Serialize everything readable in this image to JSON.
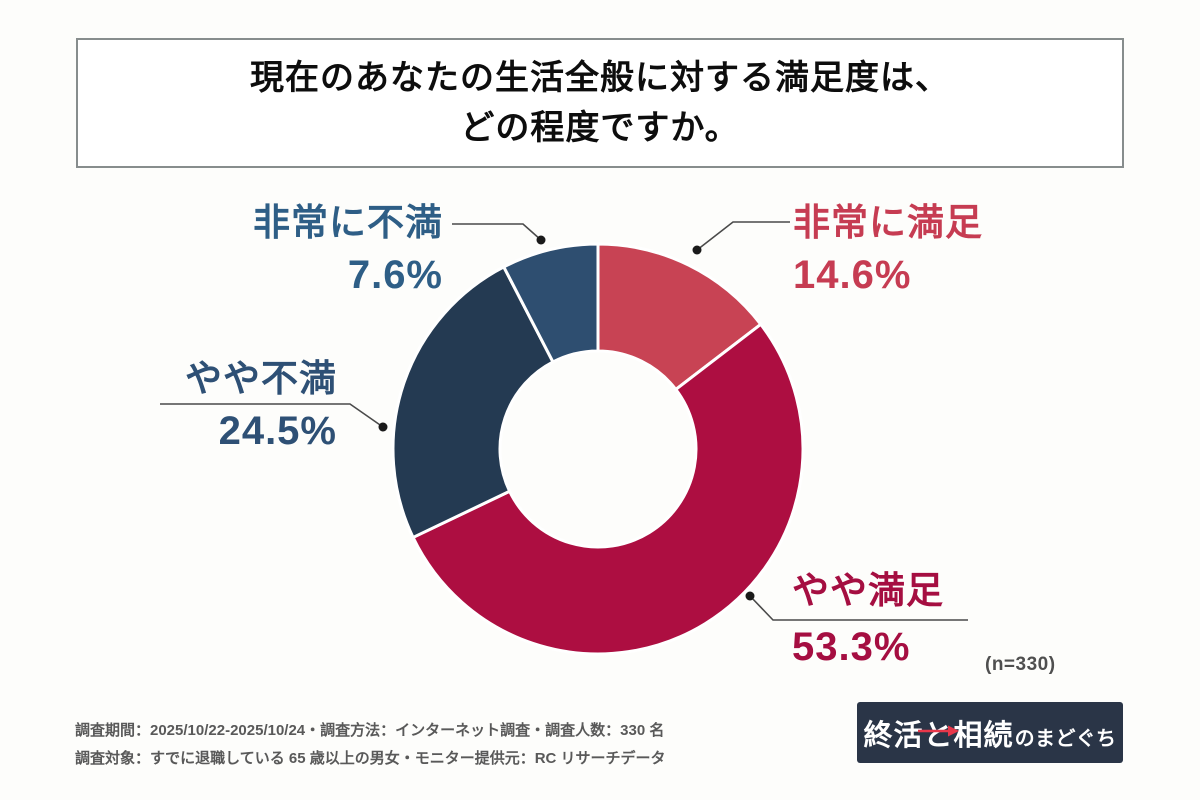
{
  "page": {
    "background": "#fdfdfb"
  },
  "title": {
    "line1": "現在のあなたの生活全般に対する満足度は、",
    "line2": "どの程度ですか。",
    "border_color": "#878d8d"
  },
  "chart_data": {
    "type": "pie",
    "subtype": "donut",
    "title": "現在のあなたの生活全般に対する満足度は、どの程度ですか。",
    "start_angle_deg": 0,
    "direction": "clockwise",
    "inner_radius_ratio": 0.48,
    "sample_size": 330,
    "segments": [
      {
        "label": "非常に満足",
        "value": 14.6,
        "value_label": "14.6%",
        "color": "#c84354",
        "label_color": "#c63c52"
      },
      {
        "label": "やや満足",
        "value": 53.3,
        "value_label": "53.3%",
        "color": "#ad0e41",
        "label_color": "#a50e41"
      },
      {
        "label": "やや不満",
        "value": 24.5,
        "value_label": "24.5%",
        "color": "#243a52",
        "label_color": "#2e5075"
      },
      {
        "label": "非常に不満",
        "value": 7.6,
        "value_label": "7.6%",
        "color": "#2e4e70",
        "label_color": "#2e5e86"
      }
    ],
    "leader_line_color": "#4a4a4a",
    "segment_border_color": "#ffffff"
  },
  "note": {
    "sample_label": "(n=330)"
  },
  "footer": {
    "line1": "調査期間：2025/10/22-2025/10/24・調査方法：インターネット調査・調査人数：330 名",
    "line2": "調査対象：すでに退職している 65 歳以上の男女・モニター提供元：RC リサーチデータ"
  },
  "logo": {
    "part1": "終活",
    "part2": "と",
    "part3": "相続",
    "suffix": "のまどぐち",
    "background": "#2a3547",
    "accent": "#e8374a"
  }
}
